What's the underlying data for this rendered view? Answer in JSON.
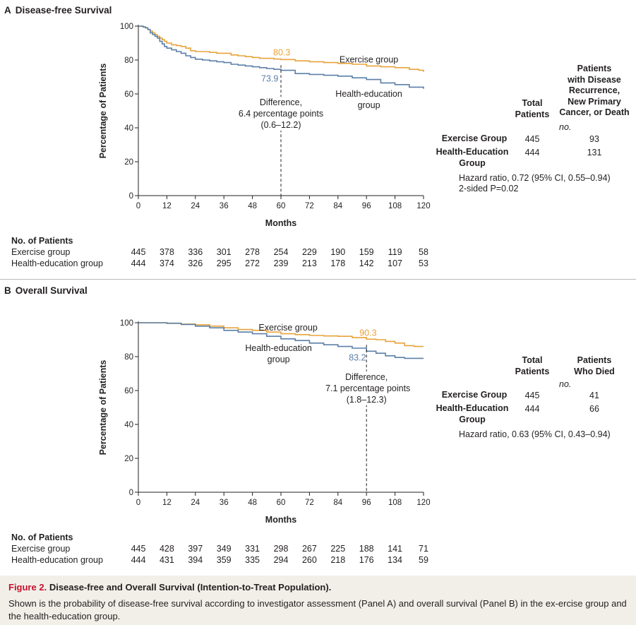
{
  "colors": {
    "exercise": "#e8a33a",
    "health_education": "#5b7fa8",
    "text": "#231f20",
    "figure_red": "#c8102e",
    "caption_bg": "#f2efe9"
  },
  "chart_data": [
    {
      "type": "line",
      "panel_letter": "A",
      "title": "Disease-free Survival",
      "xlabel": "Months",
      "ylabel": "Percentage of Patients",
      "xlim": [
        0,
        120
      ],
      "ylim": [
        0,
        100
      ],
      "x_ticks": [
        0,
        12,
        24,
        36,
        48,
        60,
        72,
        84,
        96,
        108,
        120
      ],
      "y_ticks": [
        0,
        20,
        40,
        60,
        80,
        100
      ],
      "series": [
        {
          "name": "Exercise group",
          "color": "#e8a33a",
          "x": [
            0,
            2,
            3,
            4,
            5,
            6,
            7,
            8,
            9,
            10,
            11,
            12,
            14,
            16,
            18,
            20,
            22,
            24,
            27,
            30,
            33,
            36,
            39,
            42,
            45,
            48,
            51,
            54,
            57,
            60,
            66,
            72,
            78,
            84,
            90,
            96,
            102,
            108,
            114,
            118,
            120
          ],
          "y": [
            100,
            99.6,
            99,
            98,
            97,
            96,
            95,
            94,
            93,
            92,
            91,
            90,
            89,
            88.5,
            88,
            87,
            85.5,
            85,
            85,
            84.5,
            84,
            84,
            83,
            82.5,
            82,
            81.5,
            81,
            81,
            80.6,
            80.3,
            79.5,
            79,
            78.5,
            78,
            77.5,
            76.5,
            76,
            75.5,
            74.5,
            74,
            73
          ]
        },
        {
          "name": "Health-education group",
          "color": "#5b7fa8",
          "x": [
            0,
            2,
            3,
            4,
            5,
            6,
            7,
            8,
            9,
            10,
            11,
            12,
            14,
            16,
            18,
            20,
            22,
            24,
            27,
            30,
            33,
            36,
            39,
            42,
            45,
            48,
            51,
            54,
            57,
            60,
            66,
            72,
            78,
            84,
            90,
            96,
            102,
            108,
            114,
            120
          ],
          "y": [
            100,
            99.5,
            99,
            98,
            96,
            95,
            94,
            93,
            91,
            89.5,
            88,
            87,
            86,
            85,
            84,
            82.5,
            81.5,
            80.5,
            80,
            79.5,
            79,
            78.5,
            77.5,
            77,
            76.5,
            76,
            75.5,
            75,
            74.5,
            73.9,
            72,
            71.5,
            71,
            70.5,
            69.5,
            68.5,
            66.5,
            65.5,
            64,
            63
          ]
        }
      ],
      "annotations": {
        "marker_x": 60,
        "exercise_value": "80.3",
        "health_value": "73.9",
        "difference": [
          "Difference,",
          "6.4 percentage points",
          "(0.6–12.2)"
        ],
        "exercise_label": "Exercise group",
        "health_label": [
          "Health-education",
          "group"
        ]
      }
    },
    {
      "type": "line",
      "panel_letter": "B",
      "title": "Overall Survival",
      "xlabel": "Months",
      "ylabel": "Percentage of Patients",
      "xlim": [
        0,
        120
      ],
      "ylim": [
        0,
        100
      ],
      "x_ticks": [
        0,
        12,
        24,
        36,
        48,
        60,
        72,
        84,
        96,
        108,
        120
      ],
      "y_ticks": [
        0,
        20,
        40,
        60,
        80,
        100
      ],
      "series": [
        {
          "name": "Exercise group",
          "color": "#e8a33a",
          "x": [
            0,
            6,
            12,
            18,
            24,
            30,
            36,
            42,
            48,
            54,
            60,
            66,
            72,
            78,
            84,
            90,
            96,
            100,
            104,
            108,
            112,
            116,
            120
          ],
          "y": [
            100,
            100,
            99.6,
            99.2,
            98.8,
            98,
            97,
            96,
            95.5,
            94.5,
            93.5,
            93,
            92.5,
            92.2,
            92,
            91.2,
            90.3,
            90,
            89,
            88,
            86.5,
            86,
            86
          ]
        },
        {
          "name": "Health-education group",
          "color": "#5b7fa8",
          "x": [
            0,
            6,
            12,
            18,
            24,
            30,
            36,
            42,
            48,
            54,
            60,
            66,
            72,
            78,
            84,
            90,
            96,
            100,
            104,
            108,
            112,
            116,
            120
          ],
          "y": [
            100,
            100,
            99.7,
            99,
            98,
            97,
            95.5,
            94.5,
            93.5,
            92,
            90.5,
            89.5,
            88,
            87,
            86,
            85,
            83.2,
            82,
            80.5,
            79.5,
            79,
            79,
            79
          ]
        }
      ],
      "annotations": {
        "marker_x": 96,
        "exercise_value": "90.3",
        "health_value": "83.2",
        "difference": [
          "Difference,",
          "7.1 percentage points",
          "(1.8–12.3)"
        ],
        "exercise_label": "Exercise group",
        "health_label": [
          "Health-education",
          "group"
        ]
      }
    }
  ],
  "panel_a": {
    "letter": "A",
    "title": "Disease-free Survival",
    "at_risk": {
      "heading": "No. of Patients",
      "rows": [
        {
          "label": "Exercise group",
          "values": [
            "445",
            "378",
            "336",
            "301",
            "278",
            "254",
            "229",
            "190",
            "159",
            "119",
            "58"
          ]
        },
        {
          "label": "Health-education group",
          "values": [
            "444",
            "374",
            "326",
            "295",
            "272",
            "239",
            "213",
            "178",
            "142",
            "107",
            "53"
          ]
        }
      ]
    },
    "side_table": {
      "col1_header": [
        "Total",
        "Patients"
      ],
      "col2_header": [
        "Patients",
        "with Disease",
        "Recurrence,",
        "New Primary",
        "Cancer, or Death"
      ],
      "unit": "no.",
      "rows": [
        {
          "label": [
            "Exercise Group"
          ],
          "total": "445",
          "events": "93"
        },
        {
          "label": [
            "Health-Education",
            "Group"
          ],
          "total": "444",
          "events": "131"
        }
      ],
      "notes": [
        "Hazard ratio, 0.72 (95% CI, 0.55–0.94)",
        "2-sided P=0.02"
      ]
    }
  },
  "panel_b": {
    "letter": "B",
    "title": "Overall Survival",
    "at_risk": {
      "heading": "No. of Patients",
      "rows": [
        {
          "label": "Exercise group",
          "values": [
            "445",
            "428",
            "397",
            "349",
            "331",
            "298",
            "267",
            "225",
            "188",
            "141",
            "71"
          ]
        },
        {
          "label": "Health-education group",
          "values": [
            "444",
            "431",
            "394",
            "359",
            "335",
            "294",
            "260",
            "218",
            "176",
            "134",
            "59"
          ]
        }
      ]
    },
    "side_table": {
      "col1_header": [
        "Total",
        "Patients"
      ],
      "col2_header": [
        "Patients",
        "Who Died"
      ],
      "unit": "no.",
      "rows": [
        {
          "label": [
            "Exercise Group"
          ],
          "total": "445",
          "events": "41"
        },
        {
          "label": [
            "Health-Education",
            "Group"
          ],
          "total": "444",
          "events": "66"
        }
      ],
      "notes": [
        "Hazard ratio, 0.63 (95% CI, 0.43–0.94)"
      ]
    }
  },
  "caption": {
    "figure_number": "Figure 2.",
    "title": "Disease-free and Overall Survival (Intention-to-Treat Population).",
    "text": "Shown is the probability of disease-free survival according to investigator assessment (Panel A) and overall survival (Panel B) in the ex-ercise group and the health-education group."
  }
}
